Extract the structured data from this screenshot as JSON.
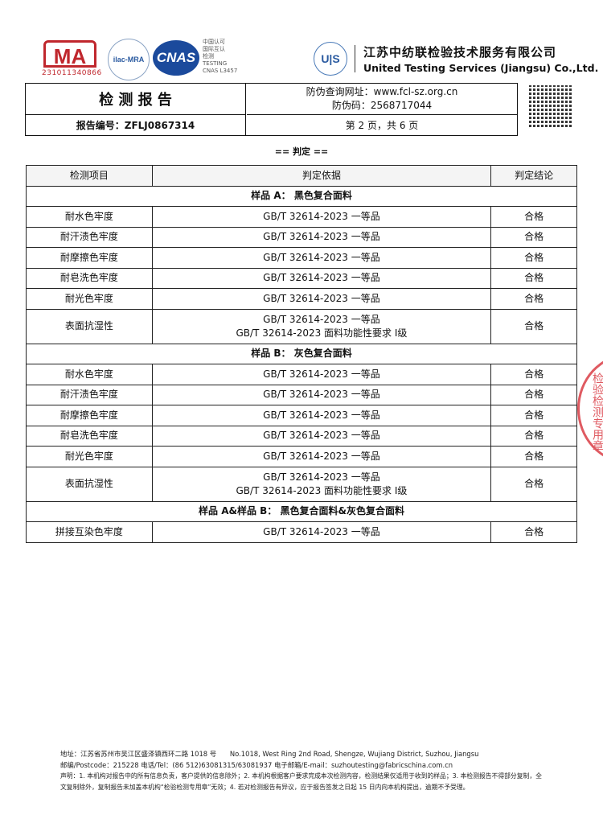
{
  "header": {
    "cma_logo": "MA",
    "cma_number": "231011340866",
    "ilac_logo": "ilac-MRA",
    "cnas_logo": "CNAS",
    "cnas_text": [
      "中国认可",
      "国际互认",
      "检测",
      "TESTING",
      "CNAS L3457"
    ],
    "uts_logo": "U|S",
    "company_cn": "江苏中纺联检验技术服务有限公司",
    "company_en": "United Testing Services (Jiangsu) Co.,Ltd.",
    "report_title": "检 测 报 告",
    "verify_url": "防伪查询网址：www.fcl-sz.org.cn",
    "verify_code": "防伪码：2568717044",
    "report_no": "报告编号：ZFLJ0867314",
    "page_info": "第 2 页，共 6 页"
  },
  "section_title": "== 判定 ==",
  "table": {
    "headers": [
      "检测项目",
      "判定依据",
      "判定结论"
    ],
    "groups": [
      {
        "title": "样品 A： 黑色复合面料",
        "rows": [
          {
            "item": "耐水色牢度",
            "basis": [
              "GB/T 32614-2023 一等品"
            ],
            "result": "合格"
          },
          {
            "item": "耐汗渍色牢度",
            "basis": [
              "GB/T 32614-2023 一等品"
            ],
            "result": "合格"
          },
          {
            "item": "耐摩擦色牢度",
            "basis": [
              "GB/T 32614-2023 一等品"
            ],
            "result": "合格"
          },
          {
            "item": "耐皂洗色牢度",
            "basis": [
              "GB/T 32614-2023 一等品"
            ],
            "result": "合格"
          },
          {
            "item": "耐光色牢度",
            "basis": [
              "GB/T 32614-2023 一等品"
            ],
            "result": "合格"
          },
          {
            "item": "表面抗湿性",
            "basis": [
              "GB/T 32614-2023 一等品",
              "GB/T 32614-2023 面料功能性要求 Ⅰ级"
            ],
            "result": "合格"
          }
        ]
      },
      {
        "title": "样品 B： 灰色复合面料",
        "rows": [
          {
            "item": "耐水色牢度",
            "basis": [
              "GB/T 32614-2023 一等品"
            ],
            "result": "合格"
          },
          {
            "item": "耐汗渍色牢度",
            "basis": [
              "GB/T 32614-2023 一等品"
            ],
            "result": "合格"
          },
          {
            "item": "耐摩擦色牢度",
            "basis": [
              "GB/T 32614-2023 一等品"
            ],
            "result": "合格"
          },
          {
            "item": "耐皂洗色牢度",
            "basis": [
              "GB/T 32614-2023 一等品"
            ],
            "result": "合格"
          },
          {
            "item": "耐光色牢度",
            "basis": [
              "GB/T 32614-2023 一等品"
            ],
            "result": "合格"
          },
          {
            "item": "表面抗湿性",
            "basis": [
              "GB/T 32614-2023 一等品",
              "GB/T 32614-2023 面料功能性要求 Ⅰ级"
            ],
            "result": "合格"
          }
        ]
      },
      {
        "title": "样品 A&样品 B： 黑色复合面料&灰色复合面料",
        "rows": [
          {
            "item": "拼接互染色牢度",
            "basis": [
              "GB/T 32614-2023 一等品"
            ],
            "result": "合格"
          }
        ]
      }
    ]
  },
  "footer": {
    "address": "地址：江苏省苏州市吴江区盛泽镇西环二路 1018 号　　No.1018, West Ring 2nd Road, Shengze, Wujiang District, Suzhou, Jiangsu",
    "contact": "邮编/Postcode：215228 电话/Tel：(86 512)63081315/63081937 电子邮箱/E-mail：suzhoutesting@fabricschina.com.cn",
    "statement": "声明：1. 本机构对报告中的所有信息负责，客户提供的信息除外；2. 本机构根据客户要求完成本次检测内容，检测结果仅适用于收到的样品；3. 本检测报告不得部分复制，全文复制除外，复制报告未加盖本机构“检验检测专用章”无效；4. 若对检测报告有异议，应于报告签发之日起 15 日内向本机构提出，逾期不予受理。"
  },
  "stamp_text": "检验检测专用章",
  "colors": {
    "stamp": "#d8313a",
    "cma": "#c0272d",
    "cnas": "#1b4a9c"
  }
}
